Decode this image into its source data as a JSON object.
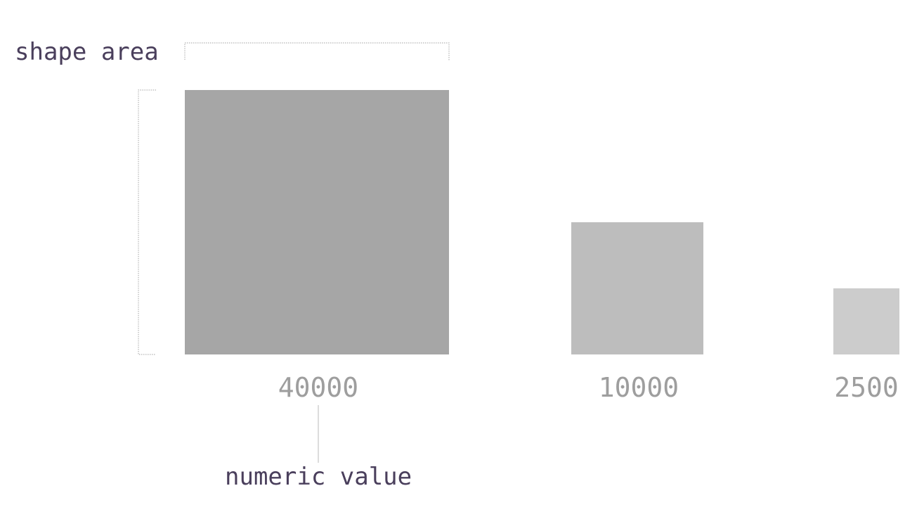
{
  "annotations": {
    "shape_area_label": "shape area",
    "numeric_value_label": "numeric value"
  },
  "chart_data": {
    "type": "area",
    "values": [
      40000,
      10000,
      2500
    ],
    "value_labels": [
      "40000",
      "10000",
      "2500"
    ],
    "fills": [
      "#a6a6a6",
      "#bdbdbd",
      "#cccccc"
    ]
  },
  "colors": {
    "annotation_text": "#4a3f5c",
    "value_text": "#9e9e9e",
    "bracket": "#b5b5b5"
  }
}
